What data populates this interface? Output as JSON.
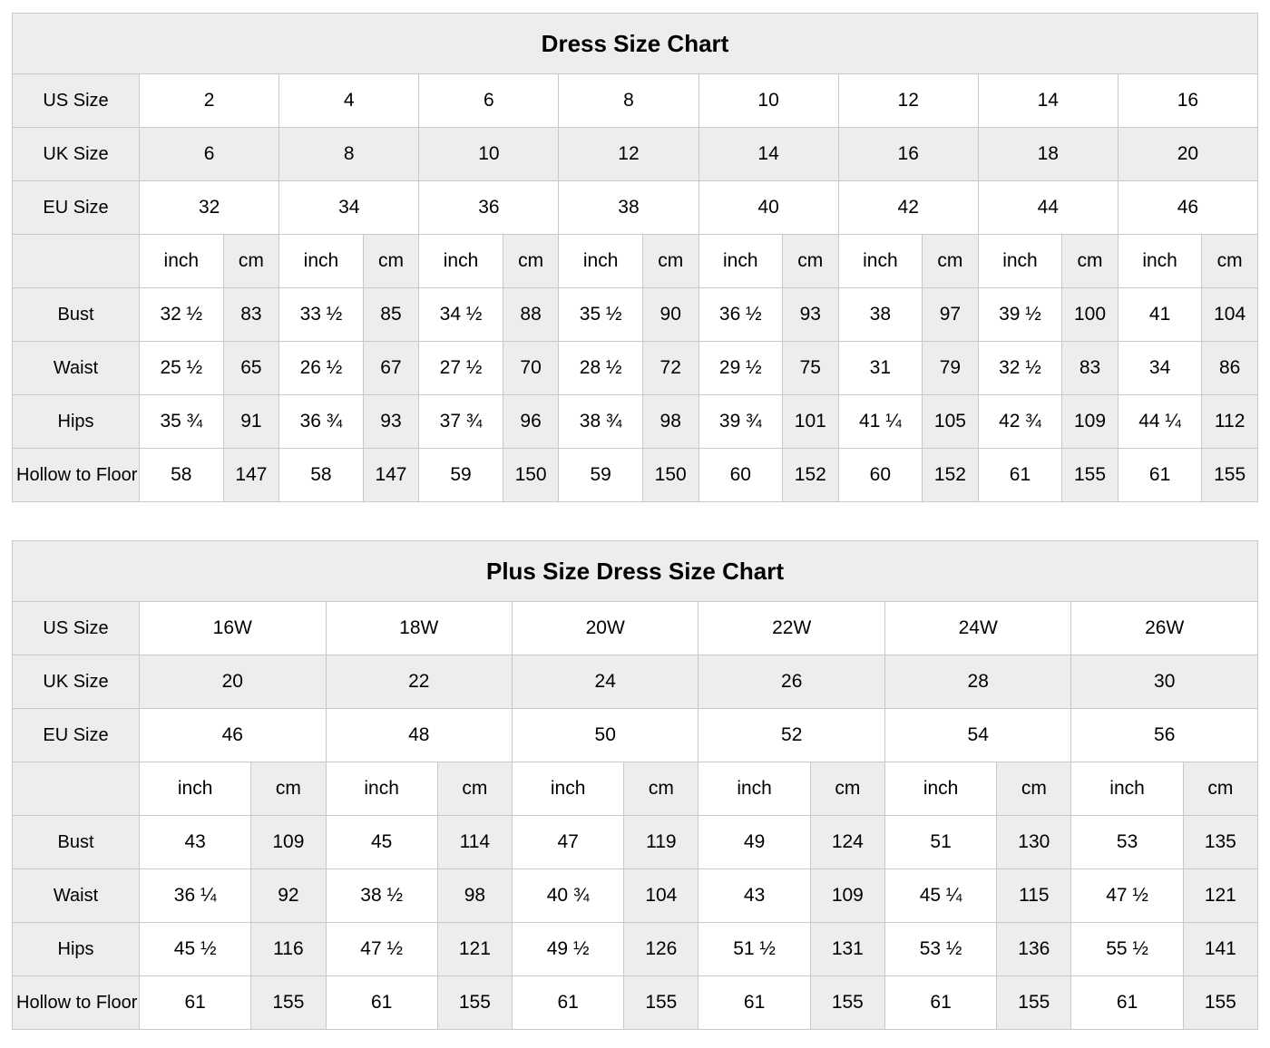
{
  "colors": {
    "header_bg": "#ededed",
    "cell_bg": "#ffffff",
    "border": "#c9c9c9",
    "text": "#000000"
  },
  "chart_data": [
    {
      "type": "table",
      "title": "Dress Size Chart",
      "size_rows": [
        {
          "label": "US Size",
          "values": [
            "2",
            "4",
            "6",
            "8",
            "10",
            "12",
            "14",
            "16"
          ]
        },
        {
          "label": "UK Size",
          "values": [
            "6",
            "8",
            "10",
            "12",
            "14",
            "16",
            "18",
            "20"
          ]
        },
        {
          "label": "EU Size",
          "values": [
            "32",
            "34",
            "36",
            "38",
            "40",
            "42",
            "44",
            "46"
          ]
        }
      ],
      "unit_headers": [
        "inch",
        "cm"
      ],
      "measurement_rows": [
        {
          "label": "Bust",
          "values": [
            [
              "32 ½",
              "83"
            ],
            [
              "33 ½",
              "85"
            ],
            [
              "34 ½",
              "88"
            ],
            [
              "35 ½",
              "90"
            ],
            [
              "36 ½",
              "93"
            ],
            [
              "38",
              "97"
            ],
            [
              "39 ½",
              "100"
            ],
            [
              "41",
              "104"
            ]
          ]
        },
        {
          "label": "Waist",
          "values": [
            [
              "25 ½",
              "65"
            ],
            [
              "26 ½",
              "67"
            ],
            [
              "27 ½",
              "70"
            ],
            [
              "28 ½",
              "72"
            ],
            [
              "29 ½",
              "75"
            ],
            [
              "31",
              "79"
            ],
            [
              "32 ½",
              "83"
            ],
            [
              "34",
              "86"
            ]
          ]
        },
        {
          "label": "Hips",
          "values": [
            [
              "35 ¾",
              "91"
            ],
            [
              "36 ¾",
              "93"
            ],
            [
              "37 ¾",
              "96"
            ],
            [
              "38 ¾",
              "98"
            ],
            [
              "39 ¾",
              "101"
            ],
            [
              "41 ¼",
              "105"
            ],
            [
              "42 ¾",
              "109"
            ],
            [
              "44 ¼",
              "112"
            ]
          ]
        },
        {
          "label": "Hollow to Floor",
          "values": [
            [
              "58",
              "147"
            ],
            [
              "58",
              "147"
            ],
            [
              "59",
              "150"
            ],
            [
              "59",
              "150"
            ],
            [
              "60",
              "152"
            ],
            [
              "60",
              "152"
            ],
            [
              "61",
              "155"
            ],
            [
              "61",
              "155"
            ]
          ]
        }
      ]
    },
    {
      "type": "table",
      "title": "Plus Size Dress Size Chart",
      "size_rows": [
        {
          "label": "US Size",
          "values": [
            "16W",
            "18W",
            "20W",
            "22W",
            "24W",
            "26W"
          ]
        },
        {
          "label": "UK Size",
          "values": [
            "20",
            "22",
            "24",
            "26",
            "28",
            "30"
          ]
        },
        {
          "label": "EU Size",
          "values": [
            "46",
            "48",
            "50",
            "52",
            "54",
            "56"
          ]
        }
      ],
      "unit_headers": [
        "inch",
        "cm"
      ],
      "measurement_rows": [
        {
          "label": "Bust",
          "values": [
            [
              "43",
              "109"
            ],
            [
              "45",
              "114"
            ],
            [
              "47",
              "119"
            ],
            [
              "49",
              "124"
            ],
            [
              "51",
              "130"
            ],
            [
              "53",
              "135"
            ]
          ]
        },
        {
          "label": "Waist",
          "values": [
            [
              "36 ¼",
              "92"
            ],
            [
              "38 ½",
              "98"
            ],
            [
              "40 ¾",
              "104"
            ],
            [
              "43",
              "109"
            ],
            [
              "45 ¼",
              "115"
            ],
            [
              "47 ½",
              "121"
            ]
          ]
        },
        {
          "label": "Hips",
          "values": [
            [
              "45 ½",
              "116"
            ],
            [
              "47 ½",
              "121"
            ],
            [
              "49 ½",
              "126"
            ],
            [
              "51 ½",
              "131"
            ],
            [
              "53 ½",
              "136"
            ],
            [
              "55 ½",
              "141"
            ]
          ]
        },
        {
          "label": "Hollow to Floor",
          "values": [
            [
              "61",
              "155"
            ],
            [
              "61",
              "155"
            ],
            [
              "61",
              "155"
            ],
            [
              "61",
              "155"
            ],
            [
              "61",
              "155"
            ],
            [
              "61",
              "155"
            ]
          ]
        }
      ]
    }
  ]
}
